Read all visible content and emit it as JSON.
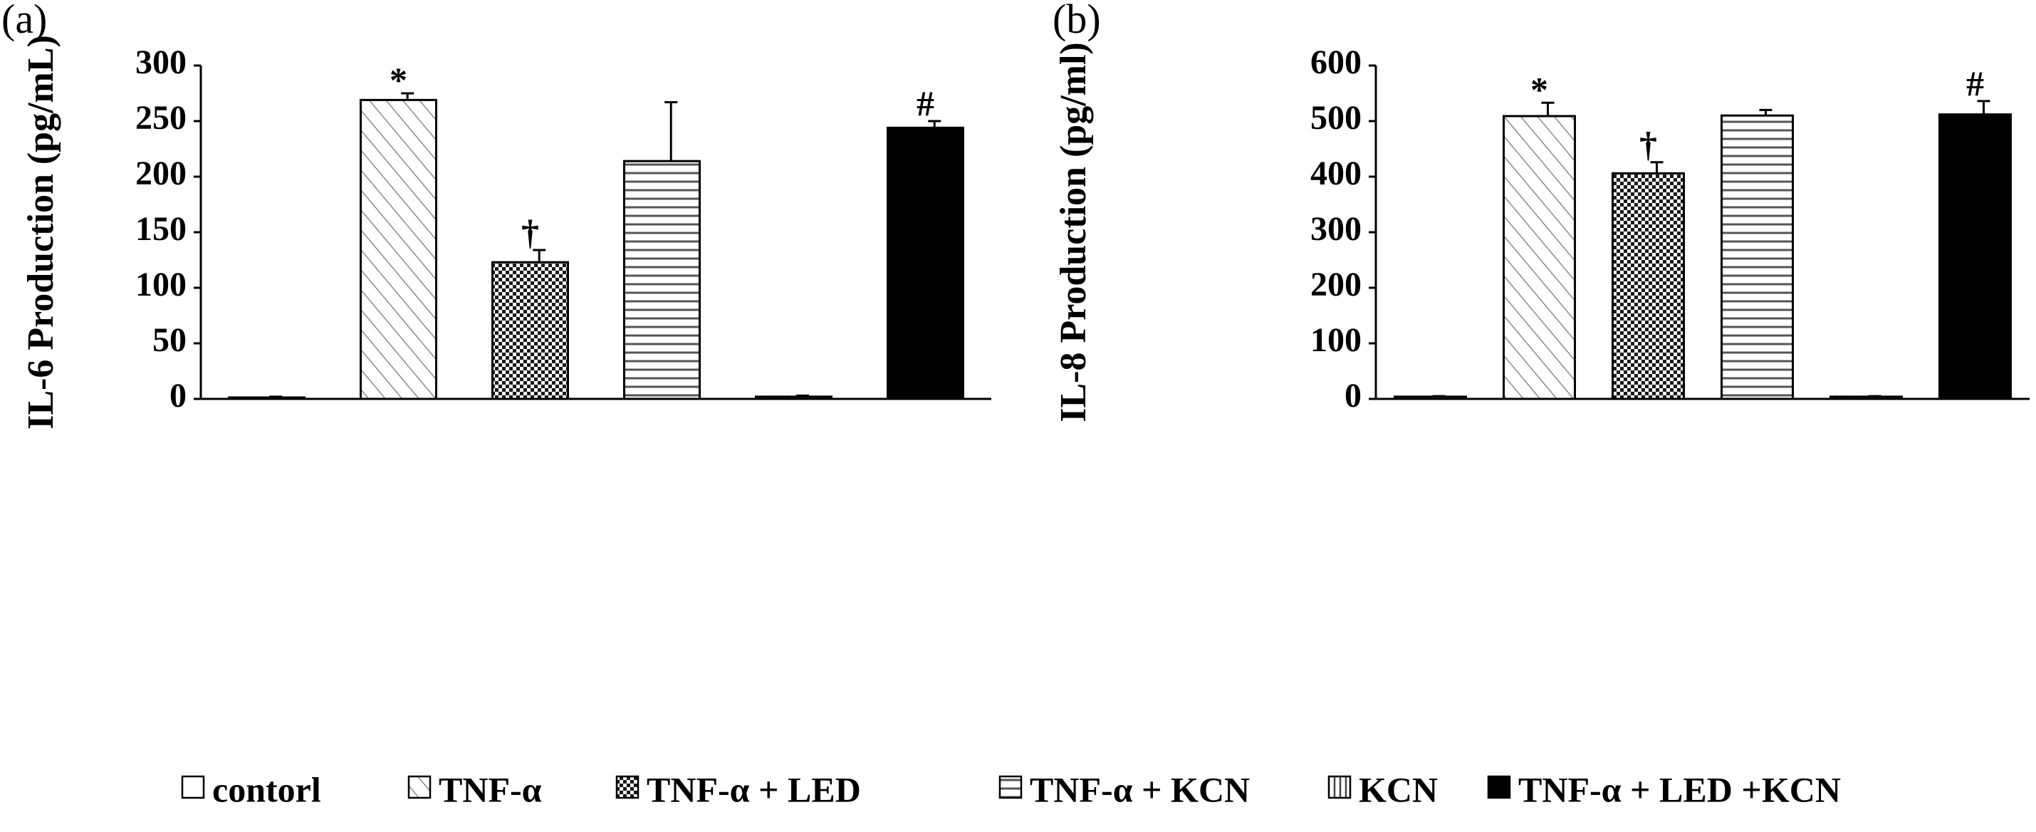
{
  "chart_data": [
    {
      "type": "bar",
      "panel_label": "(a)",
      "ylabel": "IL-6 Production (pg/mL)",
      "xlabel": "",
      "ylim": [
        0,
        300
      ],
      "yticks": [
        0,
        50,
        100,
        150,
        200,
        250,
        300
      ],
      "series": [
        {
          "name": "contorl",
          "value": 1,
          "error": 1,
          "mark": ""
        },
        {
          "name": "TNF-α",
          "value": 269,
          "error": 6,
          "mark": "*"
        },
        {
          "name": "TNF-α + LED",
          "value": 123,
          "error": 11,
          "mark": "†"
        },
        {
          "name": "TNF-α + KCN",
          "value": 214,
          "error": 53,
          "mark": ""
        },
        {
          "name": "KCN",
          "value": 2,
          "error": 1,
          "mark": ""
        },
        {
          "name": "TNF-α + LED +KCN",
          "value": 244,
          "error": 6,
          "mark": "#"
        }
      ]
    },
    {
      "type": "bar",
      "panel_label": "(b)",
      "ylabel": "IL-8 Production (pg/ml)",
      "xlabel": "",
      "ylim": [
        0,
        600
      ],
      "yticks": [
        0,
        100,
        200,
        300,
        400,
        500,
        600
      ],
      "series": [
        {
          "name": "contorl",
          "value": 4,
          "error": 1,
          "mark": ""
        },
        {
          "name": "TNF-α",
          "value": 509,
          "error": 24,
          "mark": "*"
        },
        {
          "name": "TNF-α + LED",
          "value": 406,
          "error": 20,
          "mark": "†"
        },
        {
          "name": "TNF-α + KCN",
          "value": 510,
          "error": 10,
          "mark": ""
        },
        {
          "name": "KCN",
          "value": 4,
          "error": 1,
          "mark": ""
        },
        {
          "name": "TNF-α + LED +KCN",
          "value": 512,
          "error": 24,
          "mark": "#"
        }
      ]
    }
  ],
  "legend": {
    "placement": "bottom",
    "items": [
      {
        "label": "contorl",
        "pattern": "white"
      },
      {
        "label": "TNF-α",
        "pattern": "diagonal"
      },
      {
        "label": "TNF-α + LED",
        "pattern": "checker"
      },
      {
        "label": "TNF-α + KCN",
        "pattern": "horizontal"
      },
      {
        "label": "KCN",
        "pattern": "vertical"
      },
      {
        "label": "TNF-α + LED +KCN",
        "pattern": "solid"
      }
    ]
  },
  "colors": {
    "ink": "#000000",
    "background": "#ffffff"
  }
}
